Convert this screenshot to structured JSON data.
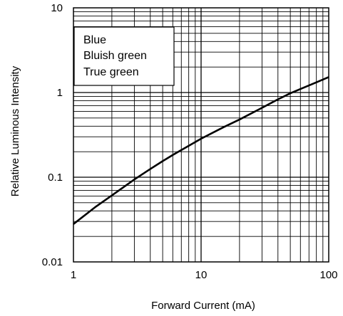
{
  "chart_data": {
    "type": "line",
    "xlabel": "Forward Current (mA)",
    "ylabel": "Relative Luminous Intensity",
    "xscale": "log",
    "yscale": "log",
    "xlim": [
      1,
      100
    ],
    "ylim": [
      0.01,
      10
    ],
    "grid": true,
    "legend_position": "top-left",
    "x_ticks": [
      {
        "value": 1,
        "label": "1"
      },
      {
        "value": 10,
        "label": "10"
      },
      {
        "value": 100,
        "label": "100"
      }
    ],
    "y_ticks": [
      {
        "value": 0.01,
        "label": "0.01"
      },
      {
        "value": 0.1,
        "label": "0.1"
      },
      {
        "value": 1,
        "label": "1"
      },
      {
        "value": 10,
        "label": "10"
      }
    ],
    "legend": [
      "Blue",
      "Bluish green",
      "True green"
    ],
    "series": [
      {
        "color": "#000000",
        "x": [
          1,
          1.5,
          2,
          3,
          4,
          5,
          6,
          8,
          10,
          15,
          20,
          30,
          40,
          50,
          60,
          80,
          100
        ],
        "y": [
          0.028,
          0.045,
          0.061,
          0.094,
          0.125,
          0.155,
          0.183,
          0.235,
          0.285,
          0.39,
          0.48,
          0.66,
          0.83,
          0.98,
          1.1,
          1.32,
          1.52
        ]
      }
    ]
  }
}
